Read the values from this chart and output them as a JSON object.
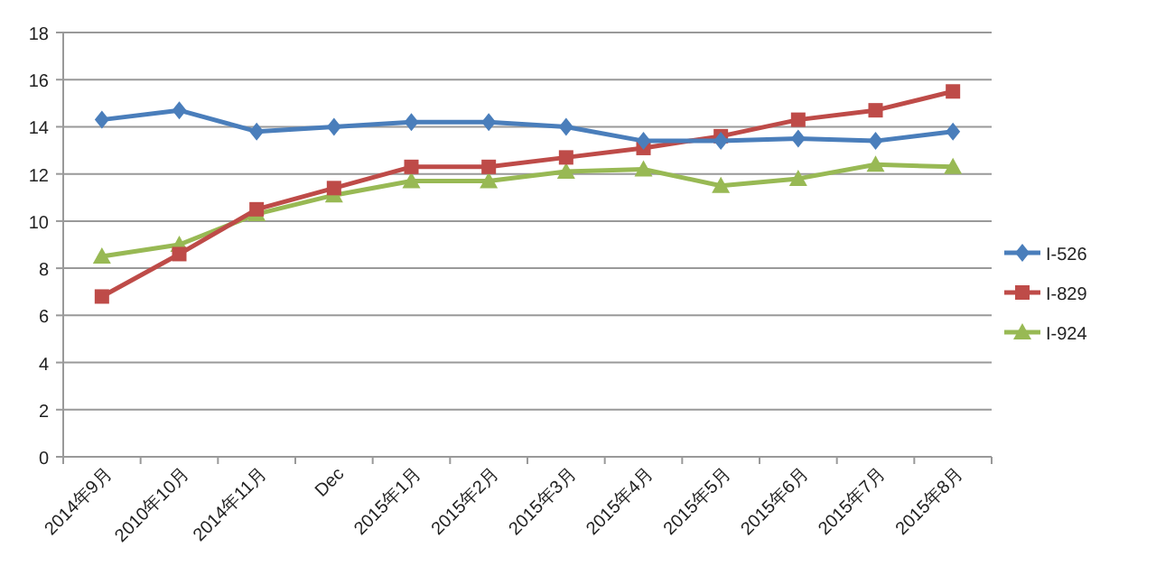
{
  "chart_data": {
    "type": "line",
    "categories": [
      "2014年9月",
      "2010年10月",
      "2014年11月",
      "Dec",
      "2015年1月",
      "2015年2月",
      "2015年3月",
      "2015年4月",
      "2015年5月",
      "2015年6月",
      "2015年7月",
      "2015年8月"
    ],
    "series": [
      {
        "name": "I-526",
        "color": "#4a7ebb",
        "marker": "diamond",
        "values": [
          14.3,
          14.7,
          13.8,
          14.0,
          14.2,
          14.2,
          14.0,
          13.4,
          13.4,
          13.5,
          13.4,
          13.8
        ]
      },
      {
        "name": "I-829",
        "color": "#be4b48",
        "marker": "square",
        "values": [
          6.8,
          8.6,
          10.5,
          11.4,
          12.3,
          12.3,
          12.7,
          13.1,
          13.6,
          14.3,
          14.7,
          15.5
        ]
      },
      {
        "name": "I-924",
        "color": "#98b954",
        "marker": "triangle",
        "values": [
          8.5,
          9.0,
          10.3,
          11.1,
          11.7,
          11.7,
          12.1,
          12.2,
          11.5,
          11.8,
          12.4,
          12.3
        ]
      }
    ],
    "ylim": [
      0,
      18
    ],
    "yticks": [
      0,
      2,
      4,
      6,
      8,
      10,
      12,
      14,
      16,
      18
    ],
    "grid": "y",
    "legend": "right",
    "line_style": "solid"
  }
}
